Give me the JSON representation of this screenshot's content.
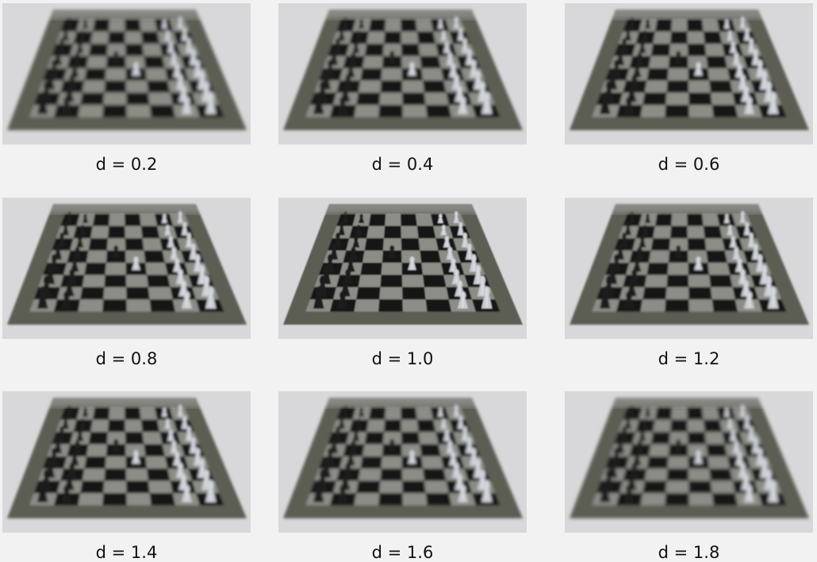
{
  "panels": [
    {
      "label": "d = 0.2",
      "d": 0.2,
      "focus": 0.2
    },
    {
      "label": "d = 0.4",
      "d": 0.4,
      "focus": 0.4
    },
    {
      "label": "d = 0.6",
      "d": 0.6,
      "focus": 0.6
    },
    {
      "label": "d = 0.8",
      "d": 0.8,
      "focus": 0.8
    },
    {
      "label": "d = 1.0",
      "d": 1.0,
      "focus": 1.0
    },
    {
      "label": "d = 1.2",
      "d": 1.2,
      "focus": 1.2
    },
    {
      "label": "d = 1.4",
      "d": 1.4,
      "focus": 1.4
    },
    {
      "label": "d = 1.6",
      "d": 1.6,
      "focus": 1.6
    },
    {
      "label": "d = 1.8",
      "d": 1.8,
      "focus": 1.8
    }
  ],
  "colors": {
    "background": "#f2f2f2",
    "table": "#d8d8da",
    "board_frame": "#5b5d52",
    "dark_square": "#141414",
    "light_square": "#8b8d86",
    "black_piece": "#1c1c1e",
    "white_piece": "#c9ccd2"
  }
}
